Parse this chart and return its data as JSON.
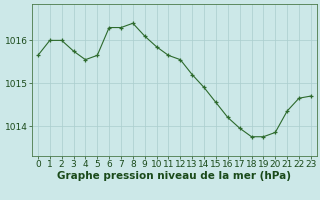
{
  "x": [
    0,
    1,
    2,
    3,
    4,
    5,
    6,
    7,
    8,
    9,
    10,
    11,
    12,
    13,
    14,
    15,
    16,
    17,
    18,
    19,
    20,
    21,
    22,
    23
  ],
  "y": [
    1015.65,
    1016.0,
    1016.0,
    1015.75,
    1015.55,
    1015.65,
    1016.3,
    1016.3,
    1016.4,
    1016.1,
    1015.85,
    1015.65,
    1015.55,
    1015.2,
    1014.9,
    1014.55,
    1014.2,
    1013.95,
    1013.75,
    1013.75,
    1013.85,
    1014.35,
    1014.65,
    1014.7
  ],
  "line_color": "#2d6a2d",
  "marker": "+",
  "bg_color": "#cce8e8",
  "grid_color": "#aacece",
  "ylabel_ticks": [
    1014,
    1015,
    1016
  ],
  "ylim": [
    1013.3,
    1016.85
  ],
  "xlim": [
    -0.5,
    23.5
  ],
  "xlabel": "Graphe pression niveau de la mer (hPa)",
  "xlabel_fontsize": 7.5,
  "tick_fontsize": 6.5,
  "title_color": "#1a4a1a",
  "spine_color": "#4a7a4a"
}
